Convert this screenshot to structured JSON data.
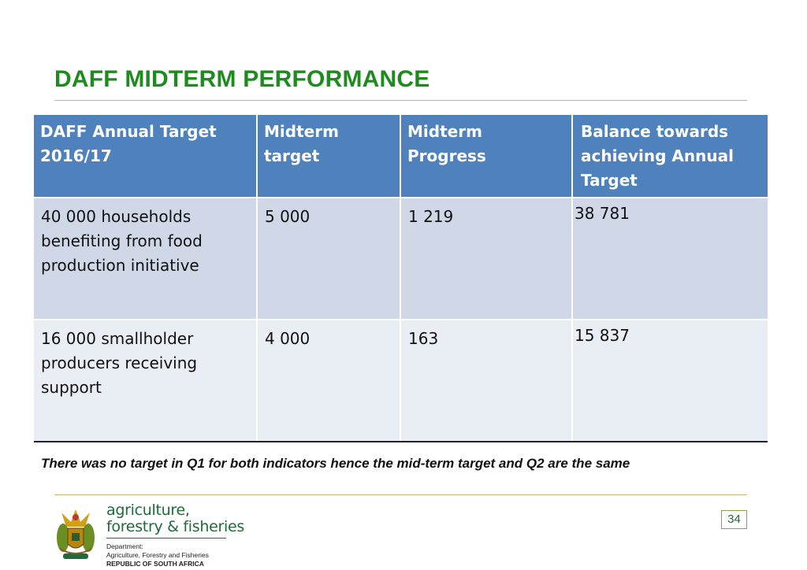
{
  "slide": {
    "title": "DAFF MIDTERM PERFORMANCE",
    "note": "There was no target in Q1 for both indicators  hence the mid-term target and Q2 are the same",
    "page_number": "34"
  },
  "table": {
    "headers": [
      "DAFF Annual Target 2016/17",
      "Midterm target",
      "Midterm Progress",
      "Balance towards achieving Annual Target"
    ],
    "rows": [
      [
        "40 000 households benefiting from food production initiative",
        "5 000",
        "1 219",
        "38 781"
      ],
      [
        "16 000  smallholder producers receiving support",
        "4 000",
        "163",
        "15 837"
      ]
    ]
  },
  "footer": {
    "brand_line1": "agriculture,",
    "brand_line2": "forestry & fisheries",
    "dept_label": "Department:",
    "dept_name": "Agriculture, Forestry and Fisheries",
    "country": "REPUBLIC OF SOUTH AFRICA",
    "logo_icon": "coat-of-arms-icon"
  },
  "colors": {
    "title": "#1f8a1f",
    "header_bg": "#4f81bd",
    "row1_bg": "#d0d8e8",
    "row2_bg": "#e9edf4",
    "rule": "#c9b46a"
  }
}
